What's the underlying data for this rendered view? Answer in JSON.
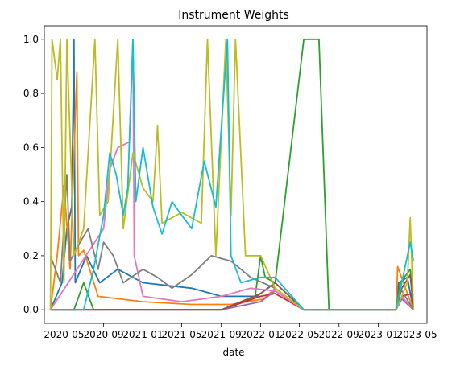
{
  "chart_data": {
    "type": "line",
    "title": "Instrument Weights",
    "xlabel": "date",
    "ylabel": "",
    "xlim": [
      "2020-03-01",
      "2023-06-01"
    ],
    "ylim": [
      -0.05,
      1.05
    ],
    "grid": false,
    "legend": "none",
    "x_ticks": [
      "2020-05",
      "2020-09",
      "2021-01",
      "2021-05",
      "2021-09",
      "2022-01",
      "2022-05",
      "2022-09",
      "2023-01",
      "2023-05"
    ],
    "y_ticks": [
      0.0,
      0.2,
      0.4,
      0.6,
      0.8,
      1.0
    ],
    "series": [
      {
        "color": "#1f77b4",
        "points": [
          [
            "2020-03-20",
            0
          ],
          [
            "2020-04-25",
            0.1
          ],
          [
            "2020-05-10",
            0.3
          ],
          [
            "2020-05-25",
            0.38
          ],
          [
            "2020-06-01",
            1.0
          ],
          [
            "2020-06-05",
            0.1
          ],
          [
            "2020-07-10",
            0.2
          ],
          [
            "2020-08-20",
            0.1
          ],
          [
            "2020-10-15",
            0.15
          ],
          [
            "2021-01-01",
            0.1
          ],
          [
            "2021-06-01",
            0.08
          ],
          [
            "2021-09-01",
            0.05
          ],
          [
            "2021-12-20",
            0.05
          ],
          [
            "2022-02-15",
            0.1
          ],
          [
            "2022-05-15",
            0
          ],
          [
            "2023-02-25",
            0
          ],
          [
            "2023-03-05",
            0.1
          ],
          [
            "2023-04-01",
            0.12
          ],
          [
            "2023-04-20",
            0
          ]
        ]
      },
      {
        "color": "#ff7f0e",
        "points": [
          [
            "2020-03-20",
            0
          ],
          [
            "2020-04-10",
            0.2
          ],
          [
            "2020-05-01",
            0.46
          ],
          [
            "2020-05-20",
            0.15
          ],
          [
            "2020-06-10",
            0.88
          ],
          [
            "2020-06-15",
            0.2
          ],
          [
            "2020-07-01",
            0.22
          ],
          [
            "2020-08-15",
            0.05
          ],
          [
            "2021-01-01",
            0.03
          ],
          [
            "2021-06-01",
            0.02
          ],
          [
            "2021-10-01",
            0.02
          ],
          [
            "2022-01-10",
            0.04
          ],
          [
            "2022-02-15",
            0.08
          ],
          [
            "2022-05-15",
            0
          ],
          [
            "2023-02-25",
            0
          ],
          [
            "2023-03-02",
            0.16
          ],
          [
            "2023-03-20",
            0.1
          ],
          [
            "2023-04-20",
            0
          ]
        ]
      },
      {
        "color": "#2ca02c",
        "points": [
          [
            "2020-03-20",
            0
          ],
          [
            "2020-06-01",
            0
          ],
          [
            "2020-07-01",
            0.1
          ],
          [
            "2020-08-01",
            0
          ],
          [
            "2021-01-01",
            0
          ],
          [
            "2021-09-01",
            0
          ],
          [
            "2021-12-15",
            0.05
          ],
          [
            "2022-01-01",
            0.2
          ],
          [
            "2022-01-15",
            0.12
          ],
          [
            "2022-02-15",
            0.1
          ],
          [
            "2022-05-15",
            1.0
          ],
          [
            "2022-07-01",
            1.0
          ],
          [
            "2022-08-01",
            0
          ],
          [
            "2023-02-25",
            0
          ],
          [
            "2023-03-10",
            0.1
          ],
          [
            "2023-04-10",
            0.15
          ],
          [
            "2023-04-20",
            0
          ]
        ]
      },
      {
        "color": "#d62728",
        "points": [
          [
            "2020-03-20",
            0
          ],
          [
            "2021-01-01",
            0
          ],
          [
            "2021-09-01",
            0
          ],
          [
            "2022-01-01",
            0.05
          ],
          [
            "2022-02-15",
            0.06
          ],
          [
            "2022-05-15",
            0
          ],
          [
            "2023-02-25",
            0
          ],
          [
            "2023-03-15",
            0.05
          ],
          [
            "2023-04-15",
            0.06
          ],
          [
            "2023-04-20",
            0
          ]
        ]
      },
      {
        "color": "#9467bd",
        "points": [
          [
            "2020-03-20",
            0
          ],
          [
            "2021-01-01",
            0
          ],
          [
            "2021-09-01",
            0
          ],
          [
            "2022-01-01",
            0.03
          ],
          [
            "2022-02-15",
            0.07
          ],
          [
            "2022-05-15",
            0
          ],
          [
            "2023-02-25",
            0
          ],
          [
            "2023-03-15",
            0.04
          ],
          [
            "2023-04-20",
            0
          ]
        ]
      },
      {
        "color": "#8c564b",
        "points": [
          [
            "2020-03-20",
            0
          ],
          [
            "2021-01-01",
            0
          ],
          [
            "2021-09-01",
            0
          ],
          [
            "2022-01-01",
            0.06
          ],
          [
            "2022-02-15",
            0.1
          ],
          [
            "2022-05-15",
            0
          ],
          [
            "2023-02-25",
            0
          ],
          [
            "2023-03-15",
            0.08
          ],
          [
            "2023-04-10",
            0.13
          ],
          [
            "2023-04-20",
            0
          ]
        ]
      },
      {
        "color": "#e377c2",
        "points": [
          [
            "2020-03-20",
            0
          ],
          [
            "2020-09-01",
            0.3
          ],
          [
            "2020-09-20",
            0.52
          ],
          [
            "2020-10-15",
            0.6
          ],
          [
            "2020-11-20",
            0.62
          ],
          [
            "2020-12-01",
            1.0
          ],
          [
            "2020-12-05",
            0.2
          ],
          [
            "2021-01-01",
            0.05
          ],
          [
            "2021-05-01",
            0.03
          ],
          [
            "2021-09-01",
            0.05
          ],
          [
            "2021-12-01",
            0.08
          ],
          [
            "2022-02-15",
            0.07
          ],
          [
            "2022-05-15",
            0
          ],
          [
            "2023-02-25",
            0
          ],
          [
            "2023-03-15",
            0.05
          ],
          [
            "2023-04-20",
            0
          ]
        ]
      },
      {
        "color": "#7f7f7f",
        "points": [
          [
            "2020-03-20",
            0.2
          ],
          [
            "2020-04-20",
            0.1
          ],
          [
            "2020-05-10",
            0.5
          ],
          [
            "2020-05-20",
            0.18
          ],
          [
            "2020-06-20",
            0.25
          ],
          [
            "2020-07-15",
            0.3
          ],
          [
            "2020-08-15",
            0.15
          ],
          [
            "2020-09-01",
            0.25
          ],
          [
            "2020-10-01",
            0.2
          ],
          [
            "2020-11-01",
            0.1
          ],
          [
            "2021-01-01",
            0.15
          ],
          [
            "2021-02-15",
            0.12
          ],
          [
            "2021-04-01",
            0.08
          ],
          [
            "2021-06-01",
            0.13
          ],
          [
            "2021-08-01",
            0.2
          ],
          [
            "2021-10-01",
            0.18
          ],
          [
            "2021-12-01",
            0.12
          ],
          [
            "2022-02-15",
            0.08
          ],
          [
            "2022-05-15",
            0
          ],
          [
            "2023-02-25",
            0
          ],
          [
            "2023-03-10",
            0.08
          ],
          [
            "2023-04-20",
            0
          ]
        ]
      },
      {
        "color": "#bcbd22",
        "points": [
          [
            "2020-03-20",
            0
          ],
          [
            "2020-03-25",
            1.0
          ],
          [
            "2020-04-10",
            0.85
          ],
          [
            "2020-04-20",
            1.0
          ],
          [
            "2020-05-01",
            0.1
          ],
          [
            "2020-05-10",
            1.0
          ],
          [
            "2020-06-01",
            0.2
          ],
          [
            "2020-07-01",
            0.3
          ],
          [
            "2020-08-05",
            1.0
          ],
          [
            "2020-08-20",
            0.35
          ],
          [
            "2020-09-15",
            0.4
          ],
          [
            "2020-10-15",
            1.0
          ],
          [
            "2020-11-01",
            0.3
          ],
          [
            "2020-12-01",
            0.58
          ],
          [
            "2021-01-01",
            0.45
          ],
          [
            "2021-02-01",
            0.4
          ],
          [
            "2021-02-15",
            0.68
          ],
          [
            "2021-03-01",
            0.32
          ],
          [
            "2021-05-01",
            0.36
          ],
          [
            "2021-07-01",
            0.32
          ],
          [
            "2021-07-20",
            1.0
          ],
          [
            "2021-08-15",
            0.2
          ],
          [
            "2021-09-15",
            1.0
          ],
          [
            "2021-10-01",
            0.35
          ],
          [
            "2021-10-15",
            1.0
          ],
          [
            "2021-11-15",
            0.2
          ],
          [
            "2022-01-01",
            0.2
          ],
          [
            "2022-02-15",
            0.08
          ],
          [
            "2022-05-15",
            0
          ],
          [
            "2023-02-25",
            0
          ],
          [
            "2023-04-01",
            0.1
          ],
          [
            "2023-04-10",
            0.34
          ],
          [
            "2023-04-20",
            0
          ]
        ]
      },
      {
        "color": "#17becf",
        "points": [
          [
            "2020-03-20",
            0
          ],
          [
            "2020-07-01",
            0
          ],
          [
            "2020-08-01",
            0.15
          ],
          [
            "2020-09-01",
            0.35
          ],
          [
            "2020-09-20",
            0.58
          ],
          [
            "2020-10-10",
            0.5
          ],
          [
            "2020-11-01",
            0.35
          ],
          [
            "2020-11-15",
            0.45
          ],
          [
            "2020-12-01",
            1.0
          ],
          [
            "2020-12-10",
            0.4
          ],
          [
            "2021-01-01",
            0.6
          ],
          [
            "2021-02-01",
            0.38
          ],
          [
            "2021-03-01",
            0.28
          ],
          [
            "2021-04-01",
            0.4
          ],
          [
            "2021-05-01",
            0.35
          ],
          [
            "2021-06-01",
            0.3
          ],
          [
            "2021-07-10",
            0.55
          ],
          [
            "2021-08-15",
            0.38
          ],
          [
            "2021-09-20",
            1.0
          ],
          [
            "2021-10-01",
            0.2
          ],
          [
            "2021-11-01",
            0.1
          ],
          [
            "2022-01-01",
            0.12
          ],
          [
            "2022-02-15",
            0.12
          ],
          [
            "2022-05-15",
            0
          ],
          [
            "2023-02-25",
            0
          ],
          [
            "2023-04-10",
            0.25
          ],
          [
            "2023-04-20",
            0.18
          ]
        ]
      }
    ]
  }
}
